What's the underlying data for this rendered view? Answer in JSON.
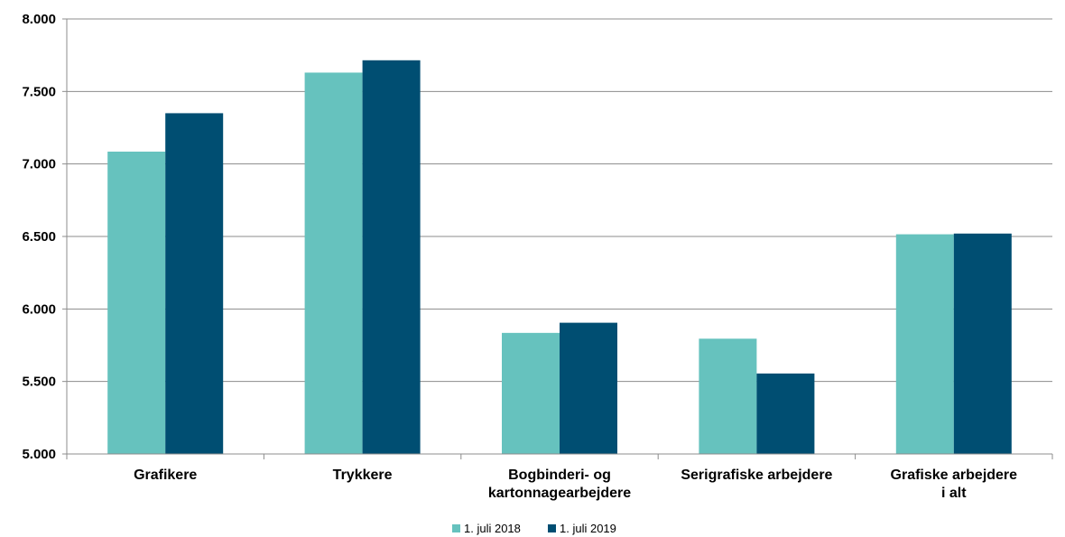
{
  "chart_data": {
    "type": "bar",
    "categories": [
      [
        "Grafikere"
      ],
      [
        "Trykkere"
      ],
      [
        "Bogbinderi- og",
        "kartonnagearbejdere"
      ],
      [
        "Serigrafiske arbejdere"
      ],
      [
        "Grafiske arbejdere",
        "i alt"
      ]
    ],
    "series": [
      {
        "name": "1. juli 2018",
        "color": "#66c2be",
        "values": [
          7085,
          7630,
          5835,
          5795,
          6515
        ]
      },
      {
        "name": "1. juli 2019",
        "color": "#004e72",
        "values": [
          7350,
          7715,
          5905,
          5555,
          6520
        ]
      }
    ],
    "ylim": [
      5000,
      8000
    ],
    "yticks": [
      5000,
      5500,
      6000,
      6500,
      7000,
      7500,
      8000
    ],
    "ytick_labels": [
      "5.000",
      "5.500",
      "6.000",
      "6.500",
      "7.000",
      "7.500",
      "8.000"
    ],
    "grid": true,
    "legend_position": "bottom-center",
    "title": "",
    "xlabel": "",
    "ylabel": ""
  }
}
